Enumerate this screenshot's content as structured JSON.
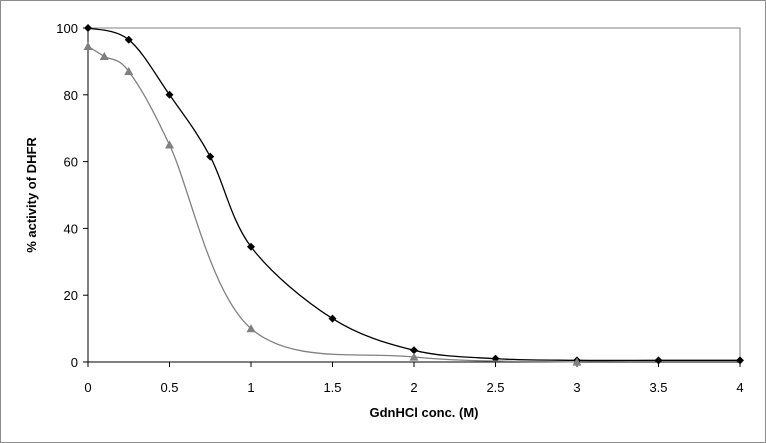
{
  "chart_data": {
    "type": "line",
    "xlabel": "GdnHCl conc. (M)",
    "ylabel": "% activity of DHFR",
    "xlim": [
      0,
      4
    ],
    "ylim": [
      0,
      100
    ],
    "x_ticks": [
      0,
      0.5,
      1,
      1.5,
      2,
      2.5,
      3,
      3.5,
      4
    ],
    "x_tick_labels": [
      "0",
      "0.5",
      "1",
      "1.5",
      "2",
      "2.5",
      "3",
      "3.5",
      "4"
    ],
    "y_ticks": [
      0,
      20,
      40,
      60,
      80,
      100
    ],
    "y_tick_labels": [
      "0",
      "20",
      "40",
      "60",
      "80",
      "100"
    ],
    "grid": false,
    "legend": "none",
    "series": [
      {
        "marker": "diamond",
        "color": "#000000",
        "x": [
          0,
          0.25,
          0.5,
          0.75,
          1,
          1.5,
          2,
          2.5,
          3,
          3.5,
          4
        ],
        "y": [
          100,
          96.5,
          80,
          61.5,
          34.5,
          13,
          3.5,
          1,
          0.5,
          0.5,
          0.5
        ]
      },
      {
        "marker": "triangle",
        "color": "#808080",
        "x": [
          0,
          0.1,
          0.25,
          0.5,
          1,
          2,
          3
        ],
        "y": [
          94.5,
          91.5,
          87,
          65,
          10,
          1.5,
          0
        ]
      }
    ]
  }
}
